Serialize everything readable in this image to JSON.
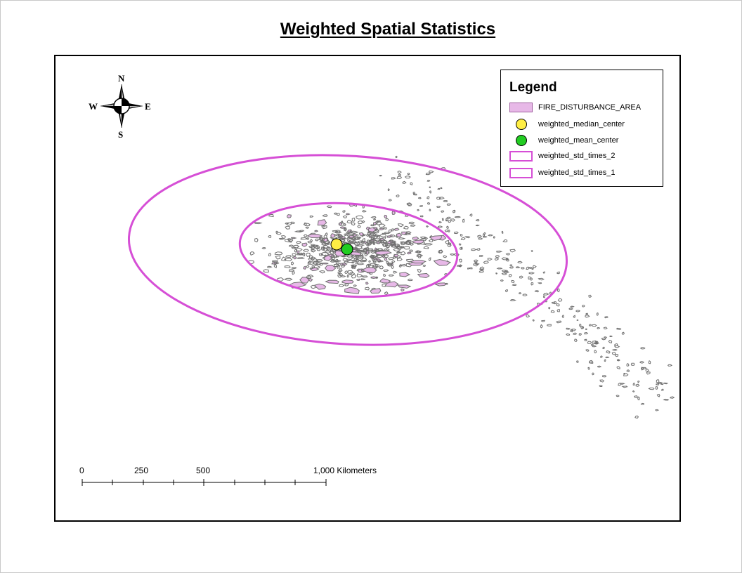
{
  "title": "Weighted Spatial Statistics",
  "legend": {
    "title": "Legend",
    "items": [
      {
        "label": "FIRE_DISTURBANCE_AREA",
        "symbol": "polygon-fill",
        "color": "#e7b8e7"
      },
      {
        "label": "weighted_median_center",
        "symbol": "point",
        "color": "#ffee44"
      },
      {
        "label": "weighted_mean_center",
        "symbol": "point",
        "color": "#22cc22"
      },
      {
        "label": "weighted_std_times_2",
        "symbol": "ellipse-outline",
        "color": "#d64fd6"
      },
      {
        "label": "weighted_std_times_1",
        "symbol": "ellipse-outline",
        "color": "#d64fd6"
      }
    ]
  },
  "compass": {
    "n": "N",
    "s": "S",
    "e": "E",
    "w": "W"
  },
  "scale_bar": {
    "labels": [
      "0",
      "250",
      "500",
      "1,000 Kilometers"
    ]
  },
  "colors": {
    "fire_outline": "#707070",
    "fire_fill": "#e7b8e7",
    "ellipse": "#d64fd6",
    "median_center": "#ffee44",
    "mean_center": "#22cc22"
  }
}
